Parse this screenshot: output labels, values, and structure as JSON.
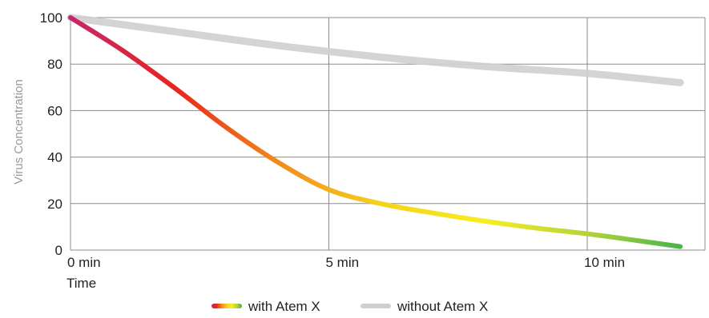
{
  "chart_data": {
    "type": "line",
    "title": "",
    "xlabel": "Time",
    "ylabel": "Virus Concentration",
    "xlim": [
      0,
      12
    ],
    "ylim": [
      0,
      100
    ],
    "x_ticks": [
      0,
      5,
      10
    ],
    "x_tick_labels": [
      "0 min",
      "5 min",
      "10 min"
    ],
    "y_ticks": [
      0,
      20,
      40,
      60,
      80,
      100
    ],
    "y_tick_labels": [
      "0",
      "20",
      "40",
      "60",
      "80",
      "100"
    ],
    "grid": true,
    "legend_position": "bottom-center",
    "series": [
      {
        "name": "with Atem X",
        "color_stops": [
          "#c8266b",
          "#e8241e",
          "#f28a1c",
          "#f5d21e",
          "#f7ee1f",
          "#b6d33a",
          "#3bb24a"
        ],
        "x": [
          0,
          1,
          2,
          3,
          4,
          5,
          6,
          7,
          8,
          9,
          10,
          11,
          11.8
        ],
        "y": [
          100,
          86,
          70,
          53,
          38,
          26,
          20,
          16,
          12.5,
          9.5,
          7,
          4,
          1.5
        ]
      },
      {
        "name": "without Atem X",
        "color": "#cfcfcf",
        "x": [
          0,
          2,
          4,
          6,
          8,
          10,
          11.8
        ],
        "y": [
          100,
          94,
          88,
          83,
          79,
          76,
          72
        ]
      }
    ]
  }
}
